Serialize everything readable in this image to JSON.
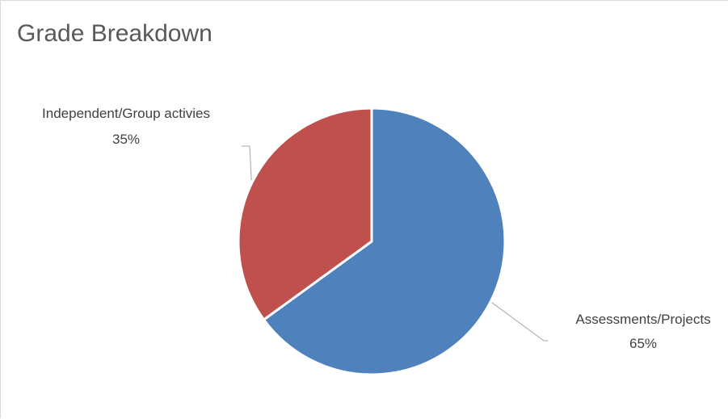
{
  "chart_data": {
    "type": "pie",
    "title": "Grade Breakdown",
    "slices": [
      {
        "label": "Assessments/Projects",
        "value_label": "65%",
        "value": 65,
        "color": "#4f81bd"
      },
      {
        "label": "Independent/Group activies",
        "value_label": "35%",
        "value": 35,
        "color": "#c0504d"
      }
    ],
    "start_angle_deg": 0,
    "direction": "clockwise",
    "legend": "none",
    "data_label_placement": "outside-with-leader-lines"
  }
}
